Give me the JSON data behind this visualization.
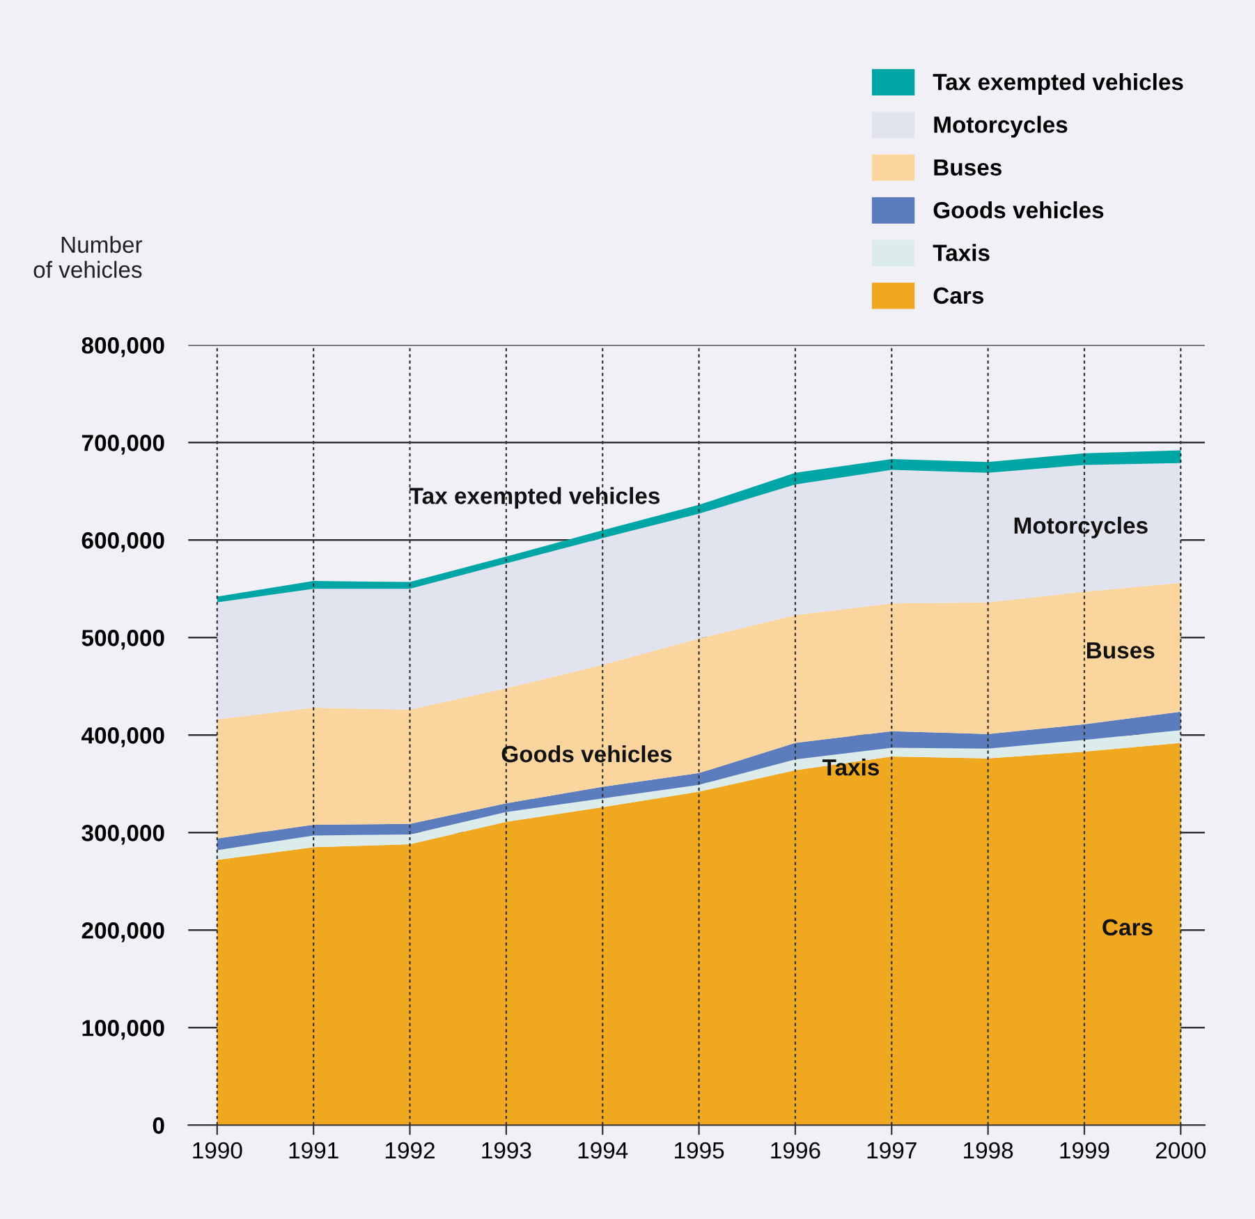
{
  "chart_data": {
    "type": "area",
    "stacked": true,
    "ylabel": "Number\nof vehicles",
    "x": [
      1990,
      1991,
      1992,
      1993,
      1994,
      1995,
      1996,
      1997,
      1998,
      1999,
      2000
    ],
    "xlim": [
      1989.7,
      2000.25
    ],
    "xticks": [
      1990,
      1991,
      1992,
      1993,
      1994,
      1995,
      1996,
      1997,
      1998,
      1999,
      2000
    ],
    "ylim": [
      0,
      800000
    ],
    "yticks": [
      {
        "value": 0,
        "label": "0"
      },
      {
        "value": 100000,
        "label": "100,000"
      },
      {
        "value": 200000,
        "label": "200,000"
      },
      {
        "value": 300000,
        "label": "300,000"
      },
      {
        "value": 400000,
        "label": "400,000"
      },
      {
        "value": 500000,
        "label": "500,000"
      },
      {
        "value": 600000,
        "label": "600,000"
      },
      {
        "value": 700000,
        "label": "700,000"
      },
      {
        "value": 800000,
        "label": "800,000"
      }
    ],
    "grid": true,
    "legend": "top right",
    "series": [
      {
        "name": "Cars",
        "color": "#f0a820",
        "values": [
          272000,
          285000,
          288000,
          311000,
          326000,
          342000,
          364000,
          378000,
          376000,
          383000,
          392000
        ]
      },
      {
        "name": "Taxis",
        "color": "#dcecea",
        "values": [
          10000,
          12000,
          10000,
          10000,
          9000,
          7000,
          11000,
          9000,
          10000,
          12000,
          13000
        ]
      },
      {
        "name": "Goods vehicles",
        "color": "#5b7dbd",
        "values": [
          12000,
          11000,
          11000,
          9000,
          12000,
          12000,
          17000,
          17000,
          15000,
          16000,
          19000
        ]
      },
      {
        "name": "Buses",
        "color": "#fad59e",
        "values": [
          122000,
          120000,
          117000,
          118000,
          125000,
          138000,
          131000,
          131000,
          135000,
          136000,
          132000
        ]
      },
      {
        "name": "Motorcycles",
        "color": "#e1e3ef",
        "values": [
          120000,
          122000,
          124000,
          128000,
          130000,
          128000,
          134000,
          137000,
          133000,
          130000,
          123000
        ]
      },
      {
        "name": "Tax exempted vehicles",
        "color": "#00a5a5",
        "values": [
          6000,
          8000,
          7000,
          7000,
          8000,
          9000,
          12000,
          11000,
          11000,
          12000,
          13000
        ]
      }
    ],
    "annotations": [
      "Cars",
      "Taxis",
      "Goods vehicles",
      "Buses",
      "Motorcycles",
      "Tax exempted vehicles"
    ]
  }
}
